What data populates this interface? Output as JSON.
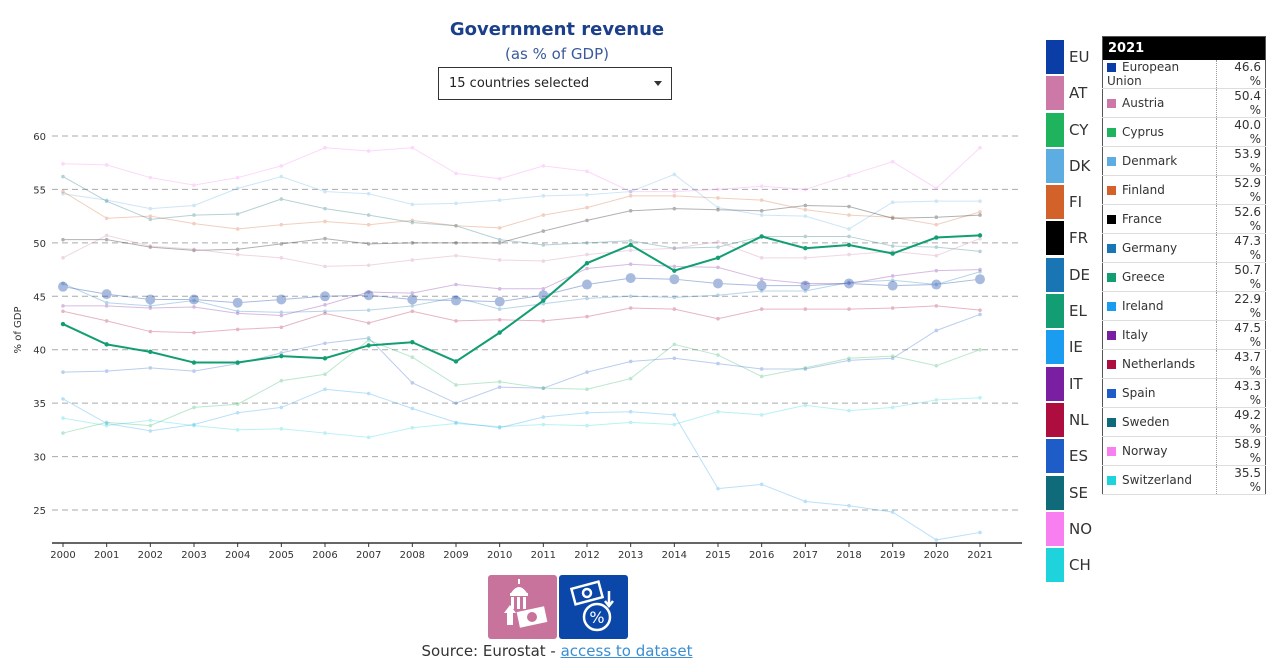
{
  "header": {
    "title": "Government revenue",
    "subtitle": "(as % of GDP)",
    "dropdown_value": "15 countries selected"
  },
  "chart_data": {
    "type": "line",
    "title": "Government revenue",
    "subtitle": "(as % of GDP)",
    "xlabel": "",
    "ylabel": "% of GDP",
    "ylim": [
      22,
      61
    ],
    "yticks": [
      25,
      30,
      35,
      40,
      45,
      50,
      55,
      60
    ],
    "grid": true,
    "highlighted": "EL",
    "x": [
      2000,
      2001,
      2002,
      2003,
      2004,
      2005,
      2006,
      2007,
      2008,
      2009,
      2010,
      2011,
      2012,
      2013,
      2014,
      2015,
      2016,
      2017,
      2018,
      2019,
      2020,
      2021
    ],
    "series": [
      {
        "code": "NO",
        "name": "Norway",
        "color": "#f77ff0",
        "values": [
          57.4,
          57.3,
          56.1,
          55.4,
          56.1,
          57.2,
          58.9,
          58.6,
          58.9,
          56.5,
          56.0,
          57.2,
          56.7,
          54.8,
          54.8,
          55.0,
          55.3,
          55.0,
          56.3,
          57.6,
          55.1,
          58.9
        ]
      },
      {
        "code": "DK",
        "name": "Denmark",
        "color": "#5dade2",
        "values": [
          54.6,
          54.0,
          53.2,
          53.5,
          55.1,
          56.2,
          54.8,
          54.6,
          53.6,
          53.7,
          54.0,
          54.4,
          54.5,
          54.8,
          56.4,
          53.3,
          52.6,
          52.5,
          51.3,
          53.8,
          53.9,
          53.9
        ]
      },
      {
        "code": "FI",
        "name": "Finland",
        "color": "#d3622a",
        "values": [
          54.8,
          52.3,
          52.5,
          51.8,
          51.3,
          51.7,
          52.0,
          51.7,
          52.1,
          51.6,
          51.4,
          52.6,
          53.3,
          54.4,
          54.4,
          54.2,
          54.0,
          53.1,
          52.6,
          52.4,
          51.7,
          52.9
        ]
      },
      {
        "code": "SE",
        "name": "Sweden",
        "color": "#0f6b7a",
        "values": [
          56.2,
          53.9,
          52.2,
          52.6,
          52.7,
          54.1,
          53.2,
          52.6,
          51.9,
          51.6,
          50.3,
          49.8,
          50.0,
          50.2,
          49.5,
          49.6,
          50.6,
          50.6,
          50.6,
          49.7,
          49.6,
          49.2
        ]
      },
      {
        "code": "FR",
        "name": "France",
        "color": "#000000",
        "values": [
          50.3,
          50.3,
          49.6,
          49.3,
          49.4,
          49.9,
          50.4,
          49.9,
          50.0,
          50.0,
          50.0,
          51.1,
          52.1,
          53.0,
          53.2,
          53.1,
          53.0,
          53.5,
          53.4,
          52.3,
          52.4,
          52.6
        ]
      },
      {
        "code": "AT",
        "name": "Austria",
        "color": "#cc79a7",
        "values": [
          48.6,
          50.7,
          49.7,
          49.4,
          48.9,
          48.6,
          47.8,
          47.9,
          48.4,
          48.8,
          48.4,
          48.3,
          48.9,
          49.3,
          49.5,
          50.1,
          48.6,
          48.6,
          48.9,
          49.2,
          48.8,
          50.4
        ]
      },
      {
        "code": "IT",
        "name": "Italy",
        "color": "#7b1fa2",
        "values": [
          44.1,
          44.1,
          43.9,
          44.0,
          43.4,
          43.2,
          44.2,
          45.4,
          45.3,
          46.1,
          45.7,
          45.7,
          47.6,
          48.0,
          47.8,
          47.7,
          46.6,
          46.2,
          46.2,
          46.9,
          47.4,
          47.5
        ]
      },
      {
        "code": "DE",
        "name": "Germany",
        "color": "#1a75b5",
        "values": [
          46.2,
          44.4,
          44.1,
          44.6,
          43.6,
          43.5,
          43.6,
          43.7,
          44.1,
          44.9,
          43.8,
          44.3,
          44.8,
          45.0,
          44.9,
          45.1,
          45.5,
          45.5,
          46.3,
          46.5,
          46.1,
          47.3
        ]
      },
      {
        "code": "NL",
        "name": "Netherlands",
        "color": "#ae0e3f",
        "values": [
          43.6,
          42.7,
          41.7,
          41.6,
          41.9,
          42.1,
          43.4,
          42.5,
          43.6,
          42.7,
          42.8,
          42.7,
          43.1,
          43.9,
          43.8,
          42.9,
          43.8,
          43.8,
          43.8,
          43.9,
          44.1,
          43.7
        ]
      },
      {
        "code": "ES",
        "name": "Spain",
        "color": "#1e5dc7",
        "values": [
          37.9,
          38.0,
          38.3,
          38.0,
          38.7,
          39.7,
          40.6,
          41.1,
          36.9,
          35.0,
          36.5,
          36.4,
          37.9,
          38.9,
          39.2,
          38.7,
          38.2,
          38.2,
          39.0,
          39.2,
          41.8,
          43.3
        ]
      },
      {
        "code": "CY",
        "name": "Cyprus",
        "color": "#1fb35e",
        "values": [
          32.2,
          33.2,
          32.9,
          34.6,
          34.9,
          37.1,
          37.7,
          40.9,
          39.3,
          36.7,
          37.0,
          36.4,
          36.3,
          37.3,
          40.5,
          39.5,
          37.5,
          38.3,
          39.2,
          39.4,
          38.5,
          40.0
        ]
      },
      {
        "code": "CH",
        "name": "Switzerland",
        "color": "#1fd3dc",
        "values": [
          33.6,
          32.9,
          33.4,
          32.9,
          32.5,
          32.6,
          32.2,
          31.8,
          32.7,
          33.1,
          32.8,
          33.0,
          32.9,
          33.2,
          33.0,
          34.2,
          33.9,
          34.8,
          34.3,
          34.6,
          35.3,
          35.5
        ]
      },
      {
        "code": "IE",
        "name": "Ireland",
        "color": "#1a9cf0",
        "values": [
          35.4,
          33.1,
          32.4,
          33.0,
          34.1,
          34.6,
          36.3,
          35.9,
          34.5,
          33.2,
          32.7,
          33.7,
          34.1,
          34.2,
          33.9,
          27.0,
          27.4,
          25.8,
          25.4,
          24.8,
          22.2,
          22.9
        ]
      },
      {
        "code": "EU",
        "name": "European Union",
        "color": "#0a3ea6",
        "values": [
          45.9,
          45.2,
          44.7,
          44.7,
          44.4,
          44.7,
          45.0,
          45.1,
          44.7,
          44.6,
          44.5,
          45.1,
          46.1,
          46.7,
          46.6,
          46.2,
          46.0,
          46.0,
          46.2,
          46.0,
          46.1,
          46.6
        ]
      },
      {
        "code": "EL",
        "name": "Greece",
        "color": "#129e72",
        "values": [
          42.4,
          40.5,
          39.8,
          38.8,
          38.8,
          39.4,
          39.2,
          40.4,
          40.7,
          38.9,
          41.6,
          44.6,
          48.1,
          49.8,
          47.4,
          48.6,
          50.6,
          49.5,
          49.8,
          49.0,
          50.5,
          50.7
        ]
      }
    ]
  },
  "legend": [
    {
      "code": "EU",
      "color": "#0a3ea6"
    },
    {
      "code": "AT",
      "color": "#cc79a7"
    },
    {
      "code": "CY",
      "color": "#1fb35e"
    },
    {
      "code": "DK",
      "color": "#5dade2"
    },
    {
      "code": "FI",
      "color": "#d3622a"
    },
    {
      "code": "FR",
      "color": "#000000"
    },
    {
      "code": "DE",
      "color": "#1a75b5"
    },
    {
      "code": "EL",
      "color": "#129e72"
    },
    {
      "code": "IE",
      "color": "#1a9cf0"
    },
    {
      "code": "IT",
      "color": "#7b1fa2"
    },
    {
      "code": "NL",
      "color": "#ae0e3f"
    },
    {
      "code": "ES",
      "color": "#1e5dc7"
    },
    {
      "code": "SE",
      "color": "#0f6b7a"
    },
    {
      "code": "NO",
      "color": "#f77ff0"
    },
    {
      "code": "CH",
      "color": "#1fd3dc"
    }
  ],
  "table": {
    "year": "2021",
    "rows": [
      {
        "name": "European Union",
        "value": "46.6 %",
        "color": "#0a3ea6"
      },
      {
        "name": "Austria",
        "value": "50.4 %",
        "color": "#cc79a7"
      },
      {
        "name": "Cyprus",
        "value": "40.0 %",
        "color": "#1fb35e"
      },
      {
        "name": "Denmark",
        "value": "53.9 %",
        "color": "#5dade2"
      },
      {
        "name": "Finland",
        "value": "52.9 %",
        "color": "#d3622a"
      },
      {
        "name": "France",
        "value": "52.6 %",
        "color": "#000000"
      },
      {
        "name": "Germany",
        "value": "47.3 %",
        "color": "#1a75b5"
      },
      {
        "name": "Greece",
        "value": "50.7 %",
        "color": "#129e72"
      },
      {
        "name": "Ireland",
        "value": "22.9 %",
        "color": "#1a9cf0"
      },
      {
        "name": "Italy",
        "value": "47.5 %",
        "color": "#7b1fa2"
      },
      {
        "name": "Netherlands",
        "value": "43.7 %",
        "color": "#ae0e3f"
      },
      {
        "name": "Spain",
        "value": "43.3 %",
        "color": "#1e5dc7"
      },
      {
        "name": "Sweden",
        "value": "49.2 %",
        "color": "#0f6b7a"
      },
      {
        "name": "Norway",
        "value": "58.9 %",
        "color": "#f77ff0"
      },
      {
        "name": "Switzerland",
        "value": "35.5 %",
        "color": "#1fd3dc"
      }
    ]
  },
  "footer": {
    "source_label": "Source: Eurostat - ",
    "link_label": "access to dataset",
    "icon1_color": "#c8739b",
    "icon2_color": "#0a47a8"
  }
}
